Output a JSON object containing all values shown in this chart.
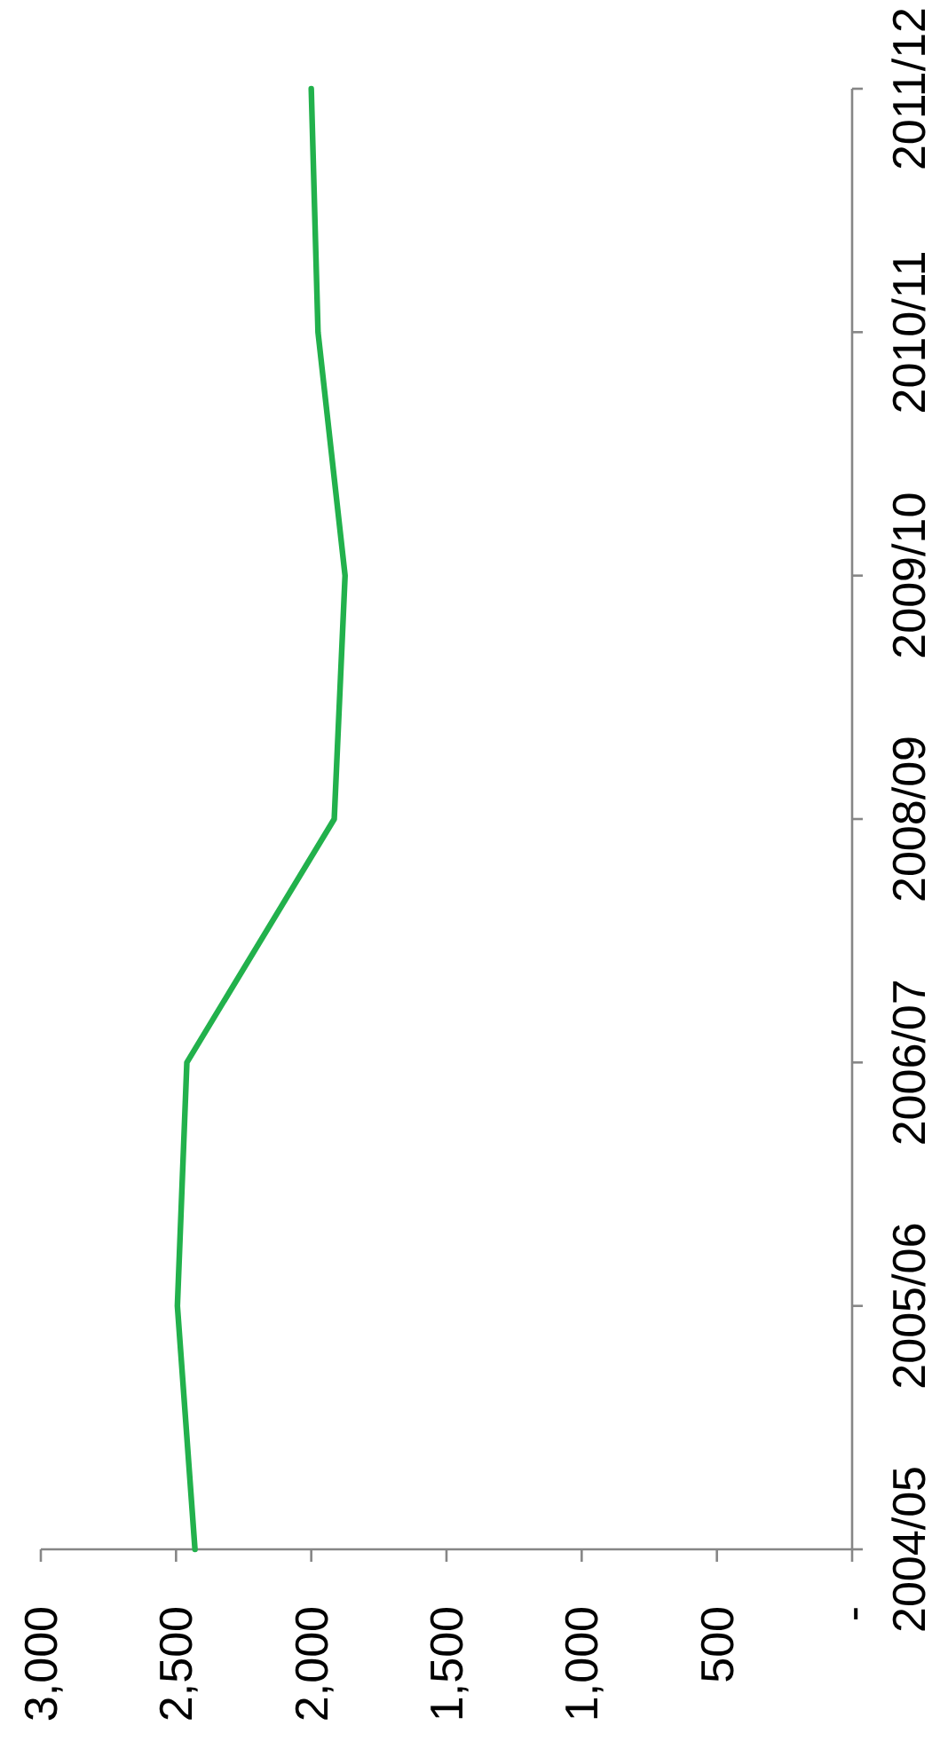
{
  "chart_data": {
    "type": "line",
    "orientation": "horizontal",
    "categories": [
      "2011/12",
      "2010/11",
      "2009/10",
      "2008/09",
      "2006/07",
      "2005/06",
      "2004/05"
    ],
    "series": [
      {
        "color": "#22b14c",
        "values": [
          2000,
          1975,
          1875,
          1915,
          2460,
          2495,
          2430
        ]
      }
    ],
    "xlim": [
      3000,
      0
    ],
    "xticks": [
      {
        "value": 3000,
        "label": "3,000"
      },
      {
        "value": 2500,
        "label": "2,500"
      },
      {
        "value": 2000,
        "label": "2,000"
      },
      {
        "value": 1500,
        "label": "1,500"
      },
      {
        "value": 1000,
        "label": "1,000"
      },
      500,
      {
        "value": 0,
        "label": "-"
      }
    ]
  }
}
